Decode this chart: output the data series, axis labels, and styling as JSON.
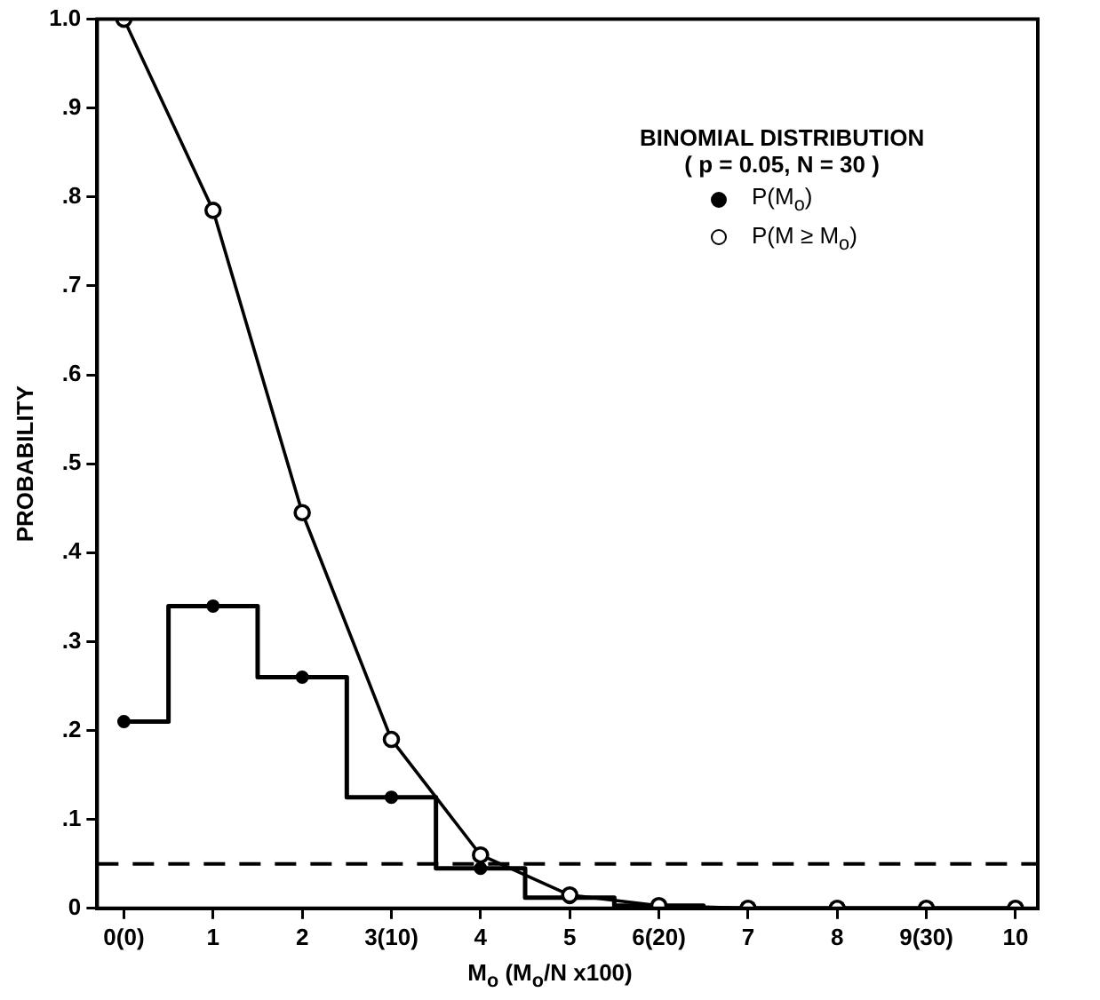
{
  "chart_data": {
    "type": "line",
    "xlabel": "M$_{o}$ (M$_{o}$/N  x100)",
    "ylabel": "PROBABILITY",
    "legend_title": "BINOMIAL DISTRIBUTION",
    "annotations": [
      "( p = 0.05, N = 30 )"
    ],
    "x": [
      0,
      1,
      2,
      3,
      4,
      5,
      6,
      7,
      8,
      9,
      10
    ],
    "series": [
      {
        "name": "P(M$_{o}$)",
        "type": "step",
        "color": "#000000",
        "values": [
          0.21,
          0.34,
          0.26,
          0.125,
          0.045,
          0.012,
          0.003,
          0,
          0,
          0,
          0
        ]
      },
      {
        "name": "P(M ≥ M$_{o}$)",
        "type": "line",
        "color": "#000000",
        "values": [
          1,
          0.785,
          0.445,
          0.19,
          0.06,
          0.015,
          0.003,
          0,
          0,
          0,
          0
        ]
      }
    ],
    "xlim": [
      -0.3,
      10.25
    ],
    "xticks": [
      {
        "value": 0,
        "label": "0(0)"
      },
      1,
      2,
      {
        "value": 3,
        "label": "3(10)"
      },
      4,
      5,
      {
        "value": 6,
        "label": "6(20)"
      },
      7,
      8,
      {
        "value": 9,
        "label": "9(30)"
      },
      10
    ],
    "ylim": [
      0,
      1
    ],
    "yticks": [
      0,
      {
        "value": 0.1,
        "label": ".1"
      },
      {
        "value": 0.2,
        "label": ".2"
      },
      {
        "value": 0.3,
        "label": ".3"
      },
      {
        "value": 0.4,
        "label": ".4"
      },
      {
        "value": 0.5,
        "label": ".5"
      },
      {
        "value": 0.6,
        "label": ".6"
      },
      {
        "value": 0.7,
        "label": ".7"
      },
      {
        "value": 0.8,
        "label": ".8"
      },
      {
        "value": 0.9,
        "label": ".9"
      },
      {
        "value": 1,
        "label": "1.0"
      }
    ],
    "ref_lines": [
      {
        "axis": "y",
        "value": 0.05,
        "line_style": "dashed"
      }
    ],
    "grid": false,
    "legend": "top right",
    "marker": "circle",
    "line_style": "solid"
  }
}
